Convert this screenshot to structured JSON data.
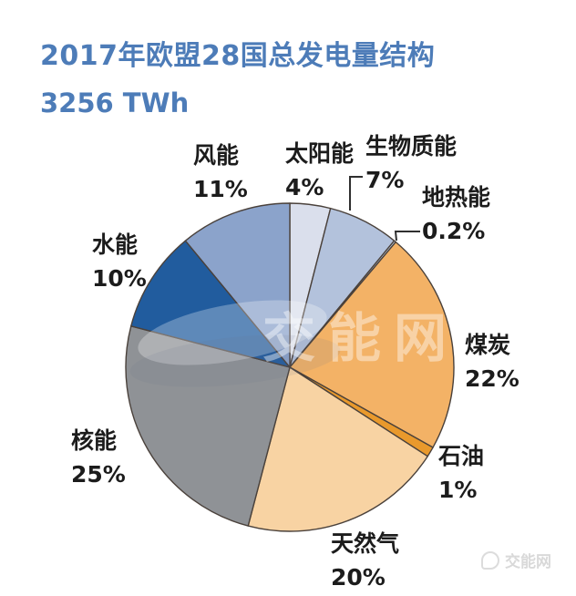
{
  "page": {
    "background": "#ffffff"
  },
  "title": {
    "line1": "2017年欧盟28国总发电量结构",
    "line2": "3256 TWh",
    "color": "#4d7cb8"
  },
  "watermark": {
    "center_text": "交能网",
    "corner_text": "交能网"
  },
  "chart_data": {
    "type": "pie",
    "title": "2017年欧盟28国总发电量结构",
    "total_label": "3256 TWh",
    "unit": "TWh",
    "start_angle_deg": 0,
    "direction": "clockwise",
    "labels_position": "outside",
    "legend": "none",
    "stroke_color": "#4a413b",
    "slices": [
      {
        "name": "太阳能",
        "value": 4,
        "percent": "4%",
        "color": "#dadfec"
      },
      {
        "name": "生物质能",
        "value": 7,
        "percent": "7%",
        "color": "#b3c2dc"
      },
      {
        "name": "地热能",
        "value": 0.2,
        "percent": "0.2%",
        "color": "#c3cfe2"
      },
      {
        "name": "煤炭",
        "value": 22,
        "percent": "22%",
        "color": "#f3b266"
      },
      {
        "name": "石油",
        "value": 1,
        "percent": "1%",
        "color": "#e9992c"
      },
      {
        "name": "天然气",
        "value": 20,
        "percent": "20%",
        "color": "#f8d3a3"
      },
      {
        "name": "核能",
        "value": 25,
        "percent": "25%",
        "color": "#8f9296"
      },
      {
        "name": "水能",
        "value": 10,
        "percent": "10%",
        "color": "#215c9e"
      },
      {
        "name": "风能",
        "value": 11,
        "percent": "11%",
        "color": "#8ba3cb"
      }
    ]
  }
}
